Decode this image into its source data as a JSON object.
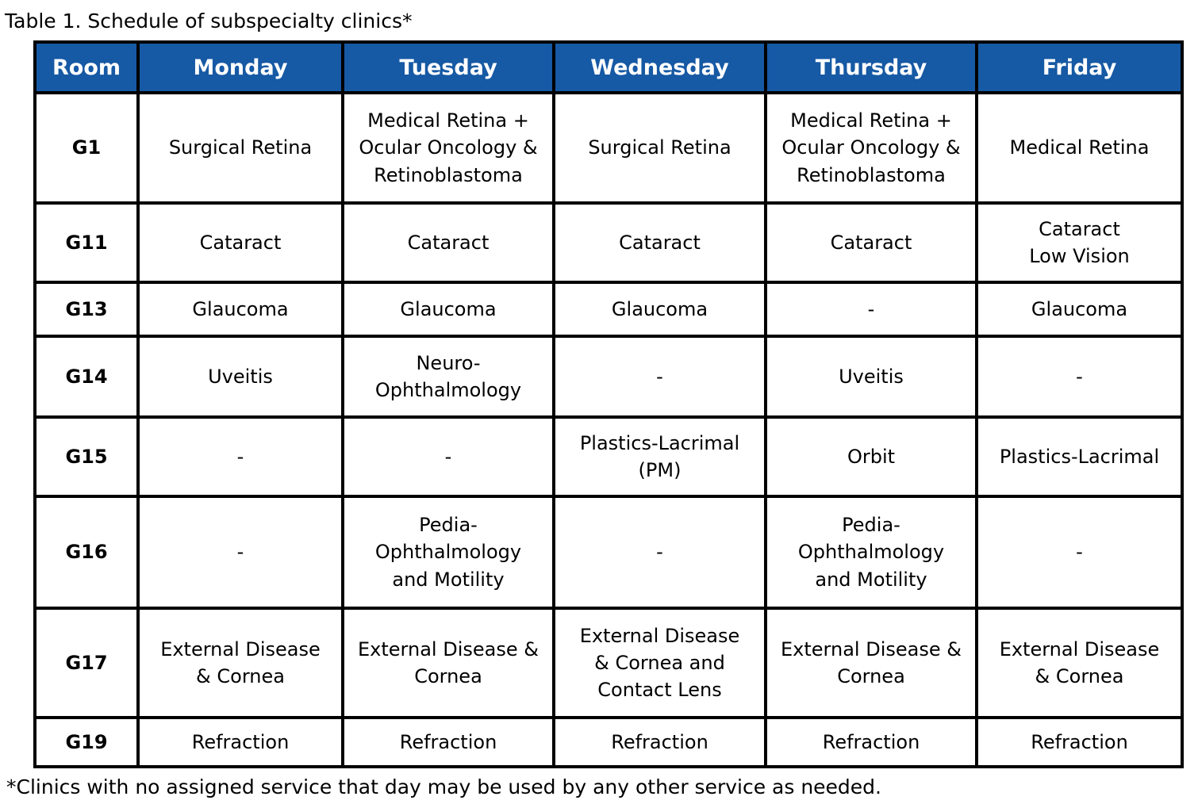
{
  "caption": "Table 1. Schedule of subspecialty clinics*",
  "footnote": "*Clinics with no assigned service that day may be used by any other service as needed.",
  "colors": {
    "header_bg": "#1659A4",
    "header_text": "#FFFFFF",
    "border": "#000000"
  },
  "table": {
    "headers": [
      "Room",
      "Monday",
      "Tuesday",
      "Wednesday",
      "Thursday",
      "Friday"
    ],
    "rows": [
      {
        "room": "G1",
        "cells": [
          "Surgical Retina",
          "Medical Retina +\nOcular Oncology &\nRetinoblastoma",
          "Surgical Retina",
          "Medical Retina +\nOcular Oncology &\nRetinoblastoma",
          "Medical Retina"
        ]
      },
      {
        "room": "G11",
        "cells": [
          "Cataract",
          "Cataract",
          "Cataract",
          "Cataract",
          "Cataract\nLow Vision"
        ]
      },
      {
        "room": "G13",
        "cells": [
          "Glaucoma",
          "Glaucoma",
          "Glaucoma",
          "-",
          "Glaucoma"
        ]
      },
      {
        "room": "G14",
        "cells": [
          "Uveitis",
          "Neuro-\nOphthalmology",
          "-",
          "Uveitis",
          "-"
        ]
      },
      {
        "room": "G15",
        "cells": [
          "-",
          "-",
          "Plastics-Lacrimal\n(PM)",
          "Orbit",
          "Plastics-Lacrimal"
        ]
      },
      {
        "room": "G16",
        "cells": [
          "-",
          "Pedia-\nOphthalmology\nand Motility",
          "-",
          "Pedia-\nOphthalmology\nand Motility",
          "-"
        ]
      },
      {
        "room": "G17",
        "cells": [
          "External Disease\n& Cornea",
          "External Disease &\nCornea",
          "External Disease\n& Cornea and\nContact Lens",
          "External Disease &\nCornea",
          "External Disease\n& Cornea"
        ]
      },
      {
        "room": "G19",
        "cells": [
          "Refraction",
          "Refraction",
          "Refraction",
          "Refraction",
          "Refraction"
        ]
      }
    ]
  }
}
